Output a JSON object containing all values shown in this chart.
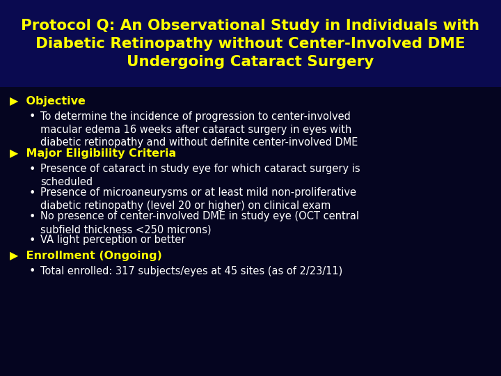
{
  "title_line1": "Protocol Q: An Observational Study in Individuals with",
  "title_line2": "Diabetic Retinopathy without Center-Involved DME",
  "title_line3": "Undergoing Cataract Surgery",
  "title_color": "#FFFF00",
  "title_fontsize": 15.5,
  "background_color": "#050520",
  "title_bg_color": "#0a0a50",
  "body_color": "#FFFFFF",
  "bold_color": "#FFFF00",
  "body_fontsize": 10.5,
  "bold_fontsize": 11.5,
  "sections": [
    {
      "header": "Objective",
      "bullets": [
        "To determine the incidence of progression to center-involved\nmacular edema 16 weeks after cataract surgery in eyes with\ndiabetic retinopathy and without definite center-involved DME"
      ]
    },
    {
      "header": "Major Eligibility Criteria",
      "bullets": [
        "Presence of cataract in study eye for which cataract surgery is\nscheduled",
        "Presence of microaneurysms or at least mild non-proliferative\ndiabetic retinopathy (level 20 or higher) on clinical exam",
        "No presence of center-involved DME in study eye (OCT central\nsubfield thickness <250 microns)",
        "VA light perception or better"
      ]
    },
    {
      "header": "Enrollment (Ongoing)",
      "bullets": [
        "Total enrolled: 317 subjects/eyes at 45 sites (as of 2/23/11)"
      ]
    }
  ]
}
